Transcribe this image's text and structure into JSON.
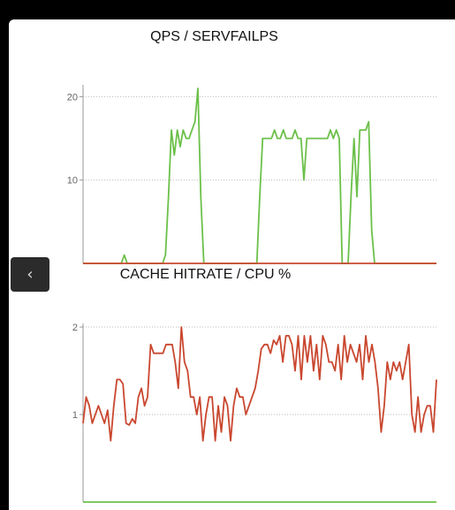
{
  "back_button": {
    "icon": "chevron-left-icon",
    "glyph": "‹"
  },
  "chart_data": [
    {
      "type": "line",
      "title": "QPS / SERVFAILPS",
      "ylim": [
        0,
        21
      ],
      "yticks": [
        10,
        20
      ],
      "grid": true,
      "legend": "none",
      "series": [
        {
          "color": "#6cc04a",
          "values": [
            0,
            0,
            0,
            0,
            0,
            0,
            0,
            0,
            0,
            0,
            0,
            0,
            0,
            0,
            1,
            0,
            0,
            0,
            0,
            0,
            0,
            0,
            0,
            0,
            0,
            0,
            0,
            0,
            1,
            8,
            16,
            13,
            16,
            14,
            16,
            15,
            15,
            16,
            17,
            21,
            8,
            0,
            0,
            0,
            0,
            0,
            0,
            0,
            0,
            0,
            0,
            0,
            0,
            0,
            0,
            0,
            0,
            0,
            0,
            0,
            8,
            15,
            15,
            15,
            15,
            16,
            15,
            15,
            16,
            15,
            15,
            15,
            16,
            15,
            15,
            10,
            15,
            15,
            15,
            15,
            15,
            15,
            15,
            15,
            16,
            15,
            16,
            15,
            0,
            0,
            0,
            8,
            15,
            8,
            16,
            16,
            16,
            17,
            4,
            0,
            0,
            0,
            0,
            0,
            0,
            0,
            0,
            0,
            0,
            0,
            0,
            0,
            0,
            0,
            0,
            0,
            0,
            0,
            0,
            0,
            0
          ]
        },
        {
          "color": "#c9472f",
          "values": [
            0,
            0,
            0,
            0,
            0,
            0,
            0,
            0,
            0,
            0,
            0,
            0,
            0,
            0,
            0,
            0,
            0,
            0,
            0,
            0,
            0,
            0,
            0,
            0,
            0,
            0,
            0,
            0,
            0,
            0,
            0,
            0,
            0,
            0,
            0,
            0,
            0,
            0,
            0,
            0,
            0,
            0,
            0,
            0,
            0,
            0,
            0,
            0,
            0,
            0,
            0,
            0,
            0,
            0,
            0,
            0,
            0,
            0,
            0,
            0,
            0,
            0,
            0,
            0,
            0,
            0,
            0,
            0,
            0,
            0,
            0,
            0,
            0,
            0,
            0,
            0,
            0,
            0,
            0,
            0,
            0,
            0,
            0,
            0,
            0,
            0,
            0,
            0,
            0,
            0,
            0,
            0,
            0,
            0,
            0,
            0,
            0,
            0,
            0,
            0,
            0,
            0,
            0,
            0,
            0,
            0,
            0,
            0,
            0,
            0,
            0,
            0,
            0,
            0,
            0,
            0,
            0,
            0,
            0,
            0,
            0
          ]
        }
      ]
    },
    {
      "type": "line",
      "title": "CACHE HITRATE / CPU %",
      "ylim": [
        0,
        2
      ],
      "yticks": [
        1,
        2
      ],
      "grid": true,
      "legend": "none",
      "series": [
        {
          "color": "#c9472f",
          "values": [
            0.9,
            1.2,
            1.1,
            0.9,
            1.0,
            1.1,
            1.0,
            0.9,
            1.05,
            0.7,
            1.1,
            1.4,
            1.4,
            1.35,
            0.9,
            0.88,
            0.95,
            0.9,
            1.2,
            1.3,
            1.1,
            1.2,
            1.8,
            1.7,
            1.7,
            1.7,
            1.7,
            1.8,
            1.8,
            1.8,
            1.6,
            1.3,
            2.0,
            1.6,
            1.5,
            1.2,
            1.2,
            1.0,
            1.2,
            0.7,
            1.0,
            1.2,
            1.2,
            0.7,
            1.1,
            0.8,
            1.2,
            1.1,
            0.7,
            1.1,
            1.3,
            1.2,
            1.2,
            1.0,
            1.1,
            1.2,
            1.3,
            1.5,
            1.75,
            1.8,
            1.8,
            1.7,
            1.85,
            1.8,
            1.9,
            1.6,
            1.9,
            1.9,
            1.8,
            1.5,
            1.9,
            1.4,
            1.9,
            1.6,
            1.9,
            1.5,
            1.8,
            1.4,
            1.9,
            1.8,
            1.6,
            1.6,
            1.5,
            1.8,
            1.4,
            1.9,
            1.6,
            1.8,
            1.7,
            1.6,
            1.8,
            1.4,
            1.9,
            1.6,
            1.8,
            1.6,
            1.3,
            0.8,
            1.1,
            1.6,
            1.4,
            1.6,
            1.5,
            1.6,
            1.4,
            1.6,
            1.8,
            1.0,
            0.8,
            1.2,
            0.8,
            1.0,
            1.1,
            1.1,
            0.8,
            1.4
          ]
        },
        {
          "color": "#6cc04a",
          "values": [
            0,
            0,
            0,
            0,
            0,
            0,
            0,
            0,
            0,
            0,
            0,
            0,
            0,
            0,
            0,
            0,
            0,
            0,
            0,
            0,
            0,
            0,
            0,
            0,
            0,
            0,
            0,
            0,
            0,
            0,
            0,
            0,
            0,
            0,
            0,
            0,
            0,
            0,
            0,
            0,
            0,
            0,
            0,
            0,
            0,
            0,
            0,
            0,
            0,
            0,
            0,
            0,
            0,
            0,
            0,
            0,
            0,
            0,
            0,
            0,
            0,
            0,
            0,
            0,
            0,
            0,
            0,
            0,
            0,
            0,
            0,
            0,
            0,
            0,
            0,
            0,
            0,
            0,
            0,
            0,
            0,
            0,
            0,
            0,
            0,
            0,
            0,
            0,
            0,
            0,
            0,
            0,
            0,
            0,
            0,
            0,
            0,
            0,
            0,
            0,
            0,
            0,
            0,
            0,
            0,
            0,
            0,
            0,
            0,
            0,
            0,
            0,
            0,
            0,
            0,
            0,
            0
          ]
        }
      ]
    }
  ]
}
